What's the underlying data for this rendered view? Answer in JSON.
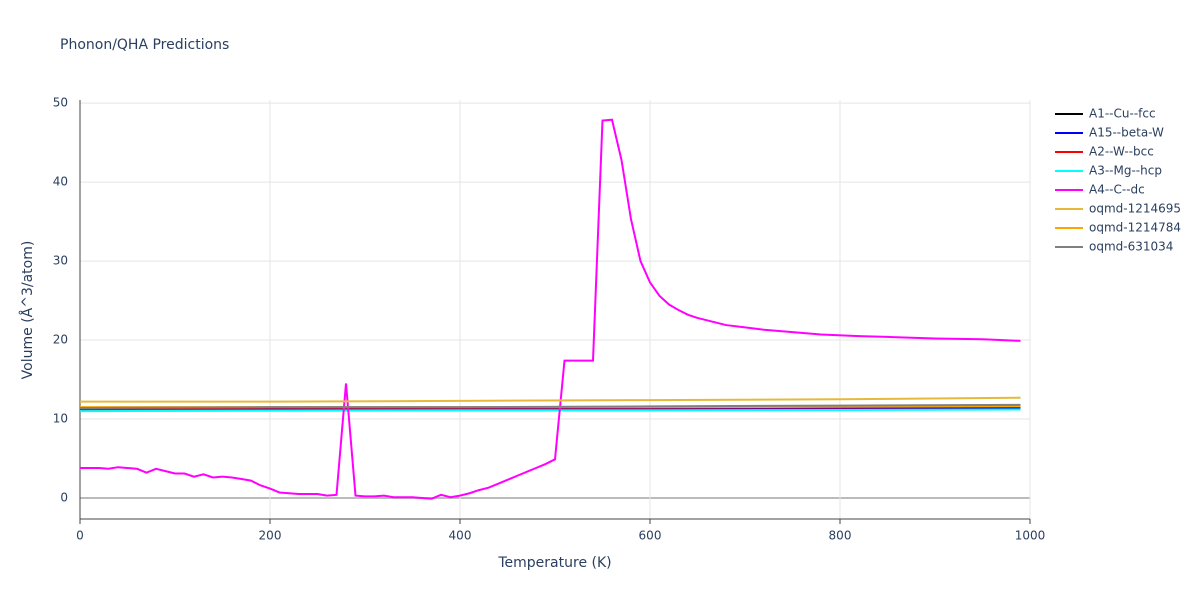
{
  "chart_data": {
    "type": "line",
    "title": "Phonon/QHA Predictions",
    "x_label": "Temperature (K)",
    "y_label": "Volume (Å^3/atom)",
    "xlim": [
      0,
      1000
    ],
    "xticks": [
      0,
      200,
      400,
      600,
      800,
      1000
    ],
    "ylim": [
      -2.66,
      50.4
    ],
    "yticks": [
      0,
      10,
      20,
      30,
      40,
      50
    ],
    "grid": true,
    "legend": "right",
    "series": [
      {
        "name": "A1--Cu--fcc",
        "color": "#000000",
        "x": [
          0,
          200,
          400,
          600,
          800,
          990
        ],
        "values": [
          11.4,
          11.4,
          11.4,
          11.4,
          11.4,
          11.4
        ]
      },
      {
        "name": "A15--beta-W",
        "color": "#0000ff",
        "x": [
          0,
          200,
          400,
          600,
          800,
          990
        ],
        "values": [
          11.3,
          11.3,
          11.3,
          11.3,
          11.3,
          11.3
        ]
      },
      {
        "name": "A2--W--bcc",
        "color": "#ff0000",
        "x": [
          0,
          200,
          400,
          600,
          800,
          990
        ],
        "values": [
          11.2,
          11.2,
          11.2,
          11.2,
          11.2,
          11.2
        ]
      },
      {
        "name": "A3--Mg--hcp",
        "color": "#00ffff",
        "x": [
          0,
          200,
          400,
          600,
          800,
          990
        ],
        "values": [
          11.0,
          11.05,
          11.1,
          11.1,
          11.15,
          11.2
        ]
      },
      {
        "name": "A4--C--dc",
        "color": "#ff00ff",
        "x": [
          0,
          10,
          20,
          30,
          40,
          50,
          60,
          70,
          80,
          90,
          100,
          110,
          120,
          130,
          140,
          150,
          160,
          170,
          180,
          190,
          200,
          210,
          220,
          230,
          240,
          250,
          260,
          270,
          280,
          290,
          300,
          310,
          320,
          330,
          340,
          350,
          360,
          370,
          380,
          390,
          400,
          410,
          420,
          430,
          440,
          450,
          460,
          470,
          480,
          490,
          500,
          510,
          520,
          530,
          540,
          550,
          560,
          570,
          580,
          590,
          600,
          610,
          620,
          630,
          640,
          650,
          660,
          670,
          680,
          700,
          720,
          750,
          780,
          820,
          850,
          900,
          950,
          990
        ],
        "values": [
          3.8,
          3.8,
          3.8,
          3.7,
          3.9,
          3.8,
          3.7,
          3.2,
          3.7,
          3.4,
          3.1,
          3.1,
          2.7,
          3.0,
          2.6,
          2.7,
          2.6,
          2.4,
          2.2,
          1.6,
          1.2,
          0.7,
          0.6,
          0.5,
          0.5,
          0.5,
          0.3,
          0.4,
          14.5,
          0.3,
          0.2,
          0.2,
          0.3,
          0.1,
          0.1,
          0.1,
          0.0,
          -0.1,
          0.4,
          0.1,
          0.3,
          0.6,
          1.0,
          1.3,
          1.8,
          2.3,
          2.8,
          3.3,
          3.8,
          4.3,
          4.9,
          17.4,
          17.4,
          17.4,
          17.4,
          47.8,
          47.9,
          42.8,
          35.3,
          30.0,
          27.3,
          25.6,
          24.5,
          23.8,
          23.2,
          22.8,
          22.5,
          22.2,
          21.9,
          21.6,
          21.3,
          21.0,
          20.7,
          20.5,
          20.4,
          20.2,
          20.1,
          19.9
        ]
      },
      {
        "name": "oqmd-1214695",
        "color": "#e6b93a",
        "x": [
          0,
          200,
          400,
          600,
          800,
          990
        ],
        "values": [
          12.2,
          12.2,
          12.3,
          12.4,
          12.5,
          12.7
        ]
      },
      {
        "name": "oqmd-1214784",
        "color": "#ffa500",
        "x": [
          0,
          200,
          400,
          600,
          800,
          990
        ],
        "values": [
          11.5,
          11.5,
          11.5,
          11.5,
          11.55,
          11.6
        ]
      },
      {
        "name": "oqmd-631034",
        "color": "#808080",
        "x": [
          0,
          200,
          400,
          600,
          800,
          990
        ],
        "values": [
          11.4,
          11.5,
          11.5,
          11.6,
          11.7,
          11.8
        ]
      }
    ]
  }
}
